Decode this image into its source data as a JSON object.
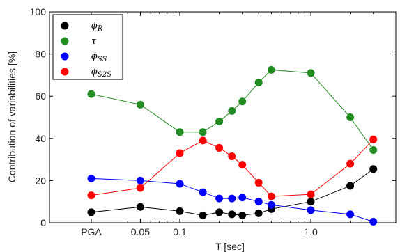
{
  "chart_data": {
    "type": "line",
    "xlabel": "T [sec]",
    "ylabel": "Contribution of variabilities [%]",
    "ylim": [
      0,
      100
    ],
    "yticks": [
      "0",
      "20",
      "40",
      "60",
      "80",
      "100"
    ],
    "x_scale": "log",
    "x_tick_labels": [
      "PGA",
      "0.05",
      "0.1",
      "1.0"
    ],
    "x_tick_values": [
      "PGA",
      0.05,
      0.1,
      1.0
    ],
    "x": [
      "PGA",
      0.05,
      0.1,
      0.15,
      0.2,
      0.25,
      0.3,
      0.4,
      0.5,
      1.0,
      2.0,
      3.0
    ],
    "grid": false,
    "legend_position": "top-left",
    "series": [
      {
        "name": "ϕR",
        "color": "#000000",
        "values": [
          5,
          7.5,
          5.5,
          3.5,
          5,
          4,
          3.5,
          4.5,
          6.5,
          10,
          17.5,
          25.5
        ]
      },
      {
        "name": "τ",
        "color": "#228b22",
        "values": [
          61,
          56,
          43,
          43,
          48,
          53,
          57.5,
          66.5,
          72.5,
          71,
          50,
          34.5
        ]
      },
      {
        "name": "ϕSS",
        "color": "#0000ff",
        "values": [
          21,
          20,
          18.5,
          14.5,
          11.5,
          11.5,
          12,
          10,
          8.5,
          6,
          4,
          0.5
        ]
      },
      {
        "name": "ϕS2S",
        "color": "#ff0000",
        "values": [
          13,
          16.5,
          33,
          39,
          35.5,
          31.5,
          27.5,
          19,
          12.5,
          13.5,
          28,
          39.5
        ]
      }
    ]
  }
}
